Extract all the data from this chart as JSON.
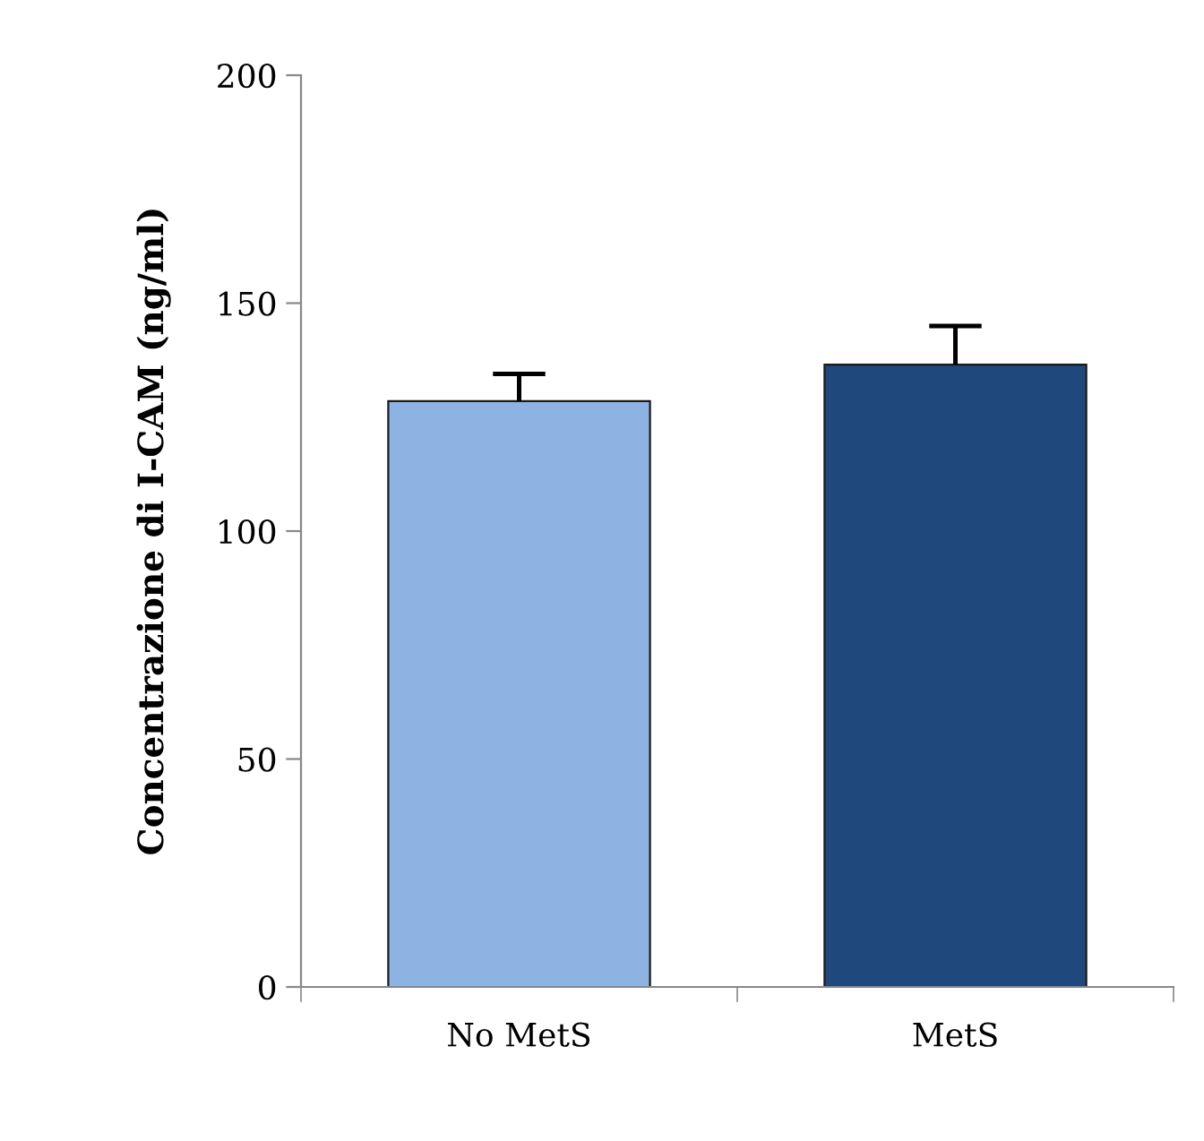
{
  "chart_data": {
    "type": "bar",
    "ylabel": "Concentrazione di I-CAM (ng/ml)",
    "categories": [
      "No MetS",
      "MetS"
    ],
    "values": [
      128.5,
      136.5
    ],
    "colors": [
      "#8db3e2",
      "#1f497d"
    ],
    "errors": [
      [
        128.5,
        134.5
      ],
      [
        136.5,
        145.0
      ]
    ],
    "ylim": [
      0,
      200
    ],
    "yticks": [
      0,
      50,
      100,
      150,
      200
    ],
    "grid": false,
    "legend": false
  }
}
